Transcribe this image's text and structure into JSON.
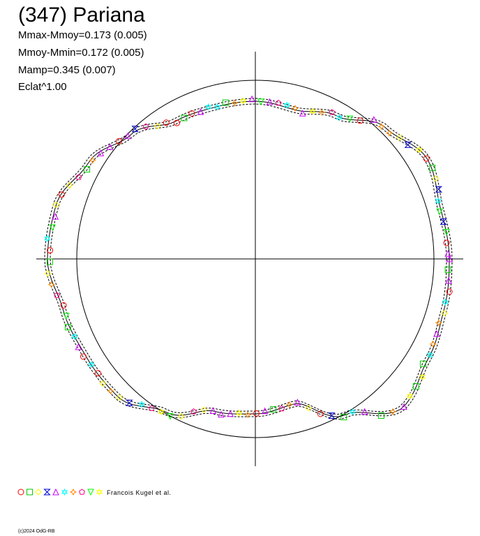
{
  "title": "(347) Pariana",
  "stats": [
    "Mmax-Mmoy=0.173 (0.005)",
    "Mmoy-Mmin=0.172 (0.005)",
    "Mamp=0.345 (0.007)",
    "Eclat^1.00"
  ],
  "credit": "Francois Kugel et al.",
  "copyright": "(c)2024 OdG-RB",
  "chart_data": {
    "type": "polar-lightcurve",
    "grid": false,
    "reference_circle": true,
    "legend_placement": "bottom-left",
    "marker_symbols": [
      "circle",
      "square",
      "diamond",
      "hourglass",
      "triangle",
      "star",
      "pinwheel",
      "pentagon",
      "inverted-triangle",
      "star"
    ],
    "marker_colors": [
      "#ff0000",
      "#00cc00",
      "#ffff00",
      "#0000cc",
      "#cc00ff",
      "#00ffff",
      "#ff8800",
      "#ff0080",
      "#00ff00",
      "#ffff00"
    ],
    "amplitude": 0.345,
    "mmax_minus_mmoy": 0.173,
    "mmoy_minus_mmin": 0.172
  }
}
